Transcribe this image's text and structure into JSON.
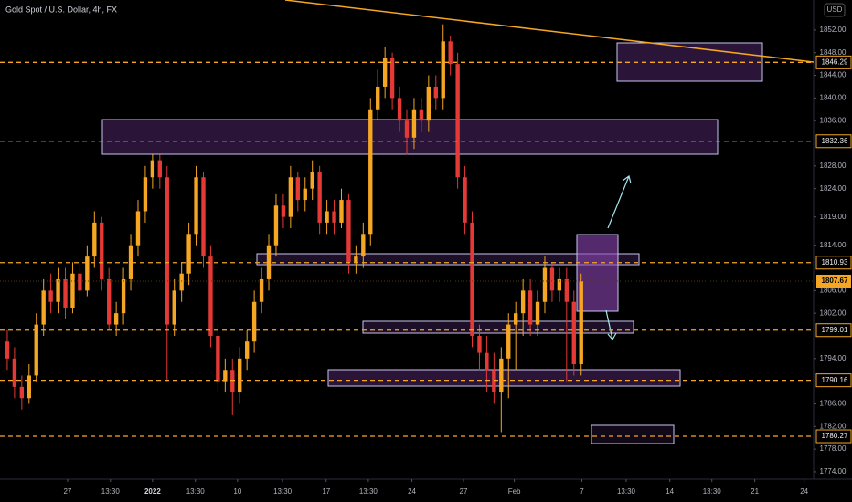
{
  "chart_data": {
    "type": "candlestick",
    "title": "Gold Spot / U.S. Dollar, 4h, FX",
    "currency": "USD",
    "up_color": "#f5a623",
    "down_color": "#e53935",
    "open": [
      1797,
      1794,
      1789,
      1787,
      1791,
      1800,
      1806,
      1804,
      1808,
      1803,
      1809,
      1806,
      1812,
      1818,
      1808,
      1800,
      1802,
      1808,
      1814,
      1820,
      1826,
      1829,
      1826,
      1800,
      1806,
      1809,
      1816,
      1826,
      1812,
      1798,
      1790,
      1792,
      1788,
      1794,
      1797,
      1804,
      1808,
      1814,
      1821,
      1819,
      1826,
      1822,
      1824,
      1827,
      1818,
      1820,
      1818,
      1822,
      1811,
      1812,
      1816,
      1838,
      1842,
      1847,
      1840,
      1836,
      1833,
      1838,
      1836,
      1842,
      1840,
      1850,
      1846,
      1826,
      1818,
      1798,
      1795,
      1792,
      1788,
      1794,
      1800,
      1802,
      1806,
      1800,
      1804,
      1810,
      1806,
      1808,
      1804,
      1793
    ],
    "high": [
      1799,
      1796,
      1791,
      1793,
      1802,
      1808,
      1809,
      1810,
      1810,
      1811,
      1811,
      1814,
      1820,
      1819,
      1810,
      1804,
      1810,
      1816,
      1822,
      1828,
      1830,
      1830,
      1828,
      1808,
      1811,
      1818,
      1828,
      1827,
      1814,
      1800,
      1794,
      1794,
      1796,
      1799,
      1806,
      1810,
      1816,
      1823,
      1823,
      1828,
      1827,
      1826,
      1829,
      1828,
      1822,
      1822,
      1824,
      1823,
      1814,
      1818,
      1840,
      1845,
      1849,
      1848,
      1842,
      1838,
      1840,
      1840,
      1844,
      1844,
      1853,
      1851,
      1848,
      1828,
      1820,
      1800,
      1798,
      1795,
      1796,
      1802,
      1804,
      1808,
      1808,
      1806,
      1812,
      1811,
      1810,
      1810,
      1806,
      1809
    ],
    "low": [
      1792,
      1787,
      1785,
      1786,
      1790,
      1798,
      1802,
      1802,
      1801,
      1802,
      1804,
      1805,
      1810,
      1806,
      1799,
      1798,
      1800,
      1806,
      1812,
      1818,
      1824,
      1824,
      1790,
      1798,
      1804,
      1807,
      1814,
      1810,
      1796,
      1788,
      1788,
      1784,
      1786,
      1792,
      1795,
      1802,
      1806,
      1812,
      1817,
      1817,
      1820,
      1820,
      1822,
      1816,
      1816,
      1816,
      1817,
      1809,
      1809,
      1810,
      1814,
      1836,
      1840,
      1838,
      1834,
      1830,
      1831,
      1834,
      1834,
      1838,
      1838,
      1844,
      1824,
      1816,
      1796,
      1792,
      1788,
      1786,
      1781,
      1787,
      1792,
      1798,
      1798,
      1798,
      1802,
      1804,
      1804,
      1790,
      1791,
      1791
    ],
    "close": [
      1794,
      1789,
      1787,
      1791,
      1800,
      1806,
      1804,
      1808,
      1803,
      1809,
      1806,
      1812,
      1818,
      1808,
      1800,
      1802,
      1808,
      1814,
      1820,
      1826,
      1829,
      1826,
      1800,
      1806,
      1809,
      1816,
      1826,
      1812,
      1798,
      1790,
      1792,
      1788,
      1794,
      1797,
      1804,
      1808,
      1814,
      1821,
      1819,
      1826,
      1822,
      1824,
      1827,
      1818,
      1820,
      1818,
      1822,
      1811,
      1812,
      1816,
      1838,
      1842,
      1847,
      1840,
      1836,
      1833,
      1838,
      1836,
      1842,
      1840,
      1850,
      1846,
      1826,
      1818,
      1798,
      1795,
      1792,
      1788,
      1794,
      1800,
      1802,
      1806,
      1800,
      1804,
      1810,
      1806,
      1808,
      1804,
      1793,
      1807.67
    ],
    "xlim": [
      -1,
      111
    ],
    "xticks": [
      {
        "value": 8.3,
        "label": "27"
      },
      {
        "value": 14.2,
        "label": "13:30"
      },
      {
        "value": 20,
        "label": "2022"
      },
      {
        "value": 25.9,
        "label": "13:30"
      },
      {
        "value": 31.7,
        "label": "10"
      },
      {
        "value": 37.9,
        "label": "13:30"
      },
      {
        "value": 43.9,
        "label": "17"
      },
      {
        "value": 49.7,
        "label": "13:30"
      },
      {
        "value": 55.7,
        "label": "24"
      },
      {
        "value": 62.8,
        "label": "27"
      },
      {
        "value": 69.8,
        "label": "Feb"
      },
      {
        "value": 79.1,
        "label": "7"
      },
      {
        "value": 85.2,
        "label": "13:30"
      },
      {
        "value": 91.2,
        "label": "14"
      },
      {
        "value": 97,
        "label": "13:30"
      },
      {
        "value": 102.9,
        "label": "21"
      },
      {
        "value": 109.7,
        "label": "24"
      }
    ],
    "ylim": [
      1772.7,
      1857.3
    ],
    "yticks": [
      {
        "value": 1852,
        "label": "1852.00"
      },
      {
        "value": 1848,
        "label": "1848.00"
      },
      {
        "value": 1844,
        "label": "1844.00"
      },
      {
        "value": 1840,
        "label": "1840.00"
      },
      {
        "value": 1836,
        "label": "1836.00"
      },
      {
        "value": 1828,
        "label": "1828.00"
      },
      {
        "value": 1824,
        "label": "1824.00"
      },
      {
        "value": 1819,
        "label": "1819.00"
      },
      {
        "value": 1814,
        "label": "1814.00"
      },
      {
        "value": 1806,
        "label": "1806.00"
      },
      {
        "value": 1802,
        "label": "1802.00"
      },
      {
        "value": 1794,
        "label": "1794.00"
      },
      {
        "value": 1786,
        "label": "1786.00"
      },
      {
        "value": 1782,
        "label": "1782.00"
      },
      {
        "value": 1778,
        "label": "1778.00"
      },
      {
        "value": 1774,
        "label": "1774.00"
      }
    ],
    "levels": [
      {
        "value": 1846.29,
        "label": "1846.29"
      },
      {
        "value": 1832.36,
        "label": "1832.36"
      },
      {
        "value": 1810.93,
        "label": "1810.93"
      },
      {
        "value": 1799.01,
        "label": "1799.01"
      },
      {
        "value": 1790.16,
        "label": "1790.16"
      },
      {
        "value": 1780.27,
        "label": "1780.27"
      }
    ],
    "last_price": {
      "value": 1807.67,
      "label": "1807.67"
    }
  }
}
